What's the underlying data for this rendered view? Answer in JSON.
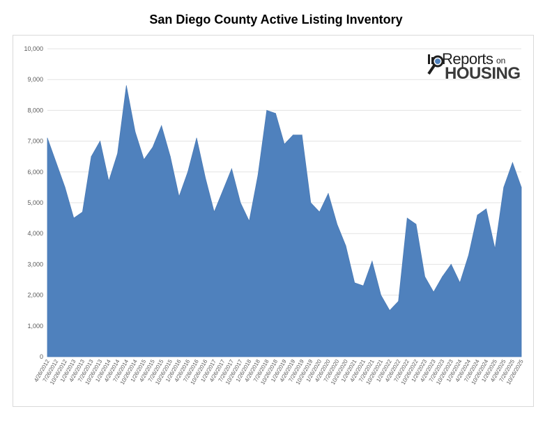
{
  "chart_data": {
    "type": "area",
    "title": "San Diego County Active Listing Inventory",
    "xlabel": "",
    "ylabel": "",
    "ylim": [
      0,
      10000
    ],
    "y_ticks": [
      "0",
      "1,000",
      "2,000",
      "3,000",
      "4,000",
      "5,000",
      "6,000",
      "7,000",
      "8,000",
      "9,000",
      "10,000"
    ],
    "grid": "horizontal",
    "fill_color": "#4f81bd",
    "x_tick_labels": [
      "4/26/2012",
      "7/26/2012",
      "10/26/2012",
      "1/26/2013",
      "4/26/2013",
      "7/26/2013",
      "10/26/2013",
      "1/26/2014",
      "4/26/2014",
      "7/26/2014",
      "10/26/2014",
      "1/26/2015",
      "4/26/2015",
      "7/26/2015",
      "10/26/2015",
      "1/26/2016",
      "4/26/2016",
      "7/26/2016",
      "10/26/2016",
      "1/26/2017",
      "4/26/2017",
      "7/26/2017",
      "10/26/2017",
      "1/26/2018",
      "4/26/2018",
      "7/26/2018",
      "10/26/2018",
      "1/26/2019",
      "4/26/2019",
      "7/26/2019",
      "10/26/2019",
      "1/26/2020",
      "4/26/2020",
      "7/26/2020",
      "10/26/2020",
      "1/26/2021",
      "4/26/2021",
      "7/26/2021",
      "10/26/2021",
      "1/26/2022",
      "4/26/2022",
      "7/26/2022",
      "10/26/2022",
      "1/26/2023",
      "4/26/2023",
      "7/26/2023",
      "10/26/2023",
      "1/26/2024",
      "4/26/2024",
      "7/26/2024",
      "10/26/2024",
      "1/26/2025",
      "4/26/2025",
      "7/26/2025",
      "10/26/2025"
    ],
    "series": [
      {
        "x": [
          "4/26/2012",
          "7/26/2012",
          "10/26/2012",
          "1/26/2013",
          "4/26/2013",
          "7/26/2013",
          "10/26/2013",
          "1/26/2014",
          "4/26/2014",
          "7/26/2014",
          "10/26/2014",
          "1/26/2015",
          "4/26/2015",
          "7/26/2015",
          "10/26/2015",
          "1/26/2016",
          "4/26/2016",
          "7/26/2016",
          "10/26/2016",
          "1/26/2017",
          "4/26/2017",
          "7/26/2017",
          "10/26/2017",
          "1/26/2018",
          "4/26/2018",
          "7/26/2018",
          "10/26/2018",
          "1/26/2019",
          "4/26/2019",
          "7/26/2019",
          "10/26/2019",
          "1/26/2020",
          "4/26/2020",
          "7/26/2020",
          "10/26/2020",
          "1/26/2021",
          "4/26/2021",
          "7/26/2021",
          "10/26/2021",
          "1/26/2022",
          "4/26/2022",
          "7/26/2022",
          "10/26/2022",
          "1/26/2023",
          "4/26/2023",
          "7/26/2023",
          "10/26/2023",
          "1/26/2024",
          "4/26/2024",
          "7/26/2024",
          "10/26/2024",
          "1/26/2025",
          "4/26/2025",
          "7/26/2025",
          "10/26/2025"
        ],
        "values": [
          7100,
          6300,
          5500,
          4500,
          4700,
          6500,
          7000,
          5700,
          6600,
          8800,
          7300,
          6400,
          6800,
          7500,
          6500,
          5200,
          6000,
          7100,
          5800,
          4700,
          5400,
          6100,
          5000,
          4400,
          5900,
          8000,
          7900,
          6900,
          7200,
          7200,
          5000,
          4700,
          5300,
          4300,
          3600,
          2400,
          2300,
          3100,
          2000,
          1500,
          1800,
          4500,
          4300,
          2600,
          2100,
          2600,
          3000,
          2400,
          3300,
          4600,
          4800,
          3500,
          5500,
          6300,
          5500
        ]
      }
    ]
  },
  "logo": {
    "reports": "Reports",
    "on": "on",
    "housing": "HOUSING",
    "color_dark": "#1f1f1f",
    "color_accent": "#4f81bd"
  }
}
